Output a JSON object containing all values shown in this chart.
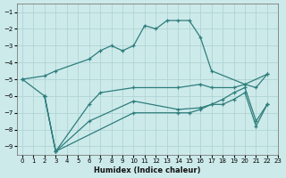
{
  "xlabel": "Humidex (Indice chaleur)",
  "xlim": [
    -0.5,
    23
  ],
  "ylim": [
    -9.5,
    -0.5
  ],
  "yticks": [
    -9,
    -8,
    -7,
    -6,
    -5,
    -4,
    -3,
    -2,
    -1
  ],
  "xticks": [
    0,
    1,
    2,
    3,
    4,
    5,
    6,
    7,
    8,
    9,
    10,
    11,
    12,
    13,
    14,
    15,
    16,
    17,
    18,
    19,
    20,
    21,
    22,
    23
  ],
  "bg_color": "#cdeaea",
  "grid_color": "#b0d4d4",
  "line_color": "#2e7d7d",
  "lines": [
    {
      "x": [
        0,
        2,
        3,
        6,
        7,
        8,
        9,
        10,
        11,
        12,
        13,
        14,
        15,
        16,
        17,
        20,
        22
      ],
      "y": [
        -5.0,
        -4.8,
        -4.5,
        -3.8,
        -3.3,
        -3.0,
        -3.3,
        -3.0,
        -1.8,
        -2.0,
        -1.5,
        -1.5,
        -1.5,
        -2.5,
        -4.5,
        -5.3,
        -4.7
      ]
    },
    {
      "x": [
        0,
        2,
        3,
        6,
        7,
        10,
        14,
        16,
        17,
        19,
        20,
        21,
        22
      ],
      "y": [
        -5.0,
        -6.0,
        -9.3,
        -6.5,
        -5.8,
        -5.5,
        -5.5,
        -5.3,
        -5.5,
        -5.5,
        -5.3,
        -5.5,
        -4.7
      ]
    },
    {
      "x": [
        2,
        3,
        6,
        10,
        14,
        16,
        17,
        18,
        19,
        20,
        21,
        22
      ],
      "y": [
        -6.0,
        -9.3,
        -7.5,
        -6.3,
        -6.8,
        -6.7,
        -6.5,
        -6.2,
        -5.8,
        -5.5,
        -7.5,
        -6.5
      ]
    },
    {
      "x": [
        2,
        3,
        10,
        14,
        15,
        16,
        17,
        18,
        19,
        20,
        21,
        22
      ],
      "y": [
        -6.0,
        -9.3,
        -7.0,
        -7.0,
        -7.0,
        -6.8,
        -6.5,
        -6.5,
        -6.2,
        -5.8,
        -7.8,
        -6.5
      ]
    }
  ]
}
